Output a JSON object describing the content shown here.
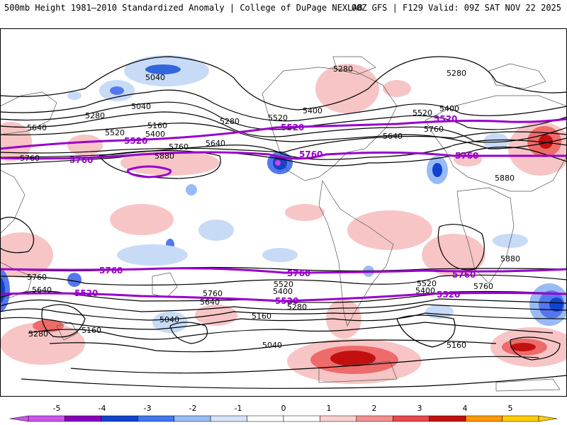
{
  "header": {
    "left_title": "500mb Height 1981–2010 Standardized Anomaly | College of DuPage NEXLAB",
    "right_title": "00Z GFS | F129 Valid: 09Z SAT NOV 22 2025"
  },
  "colors": {
    "contour": "#000000",
    "highlight_contour": "#9900cc",
    "ocean_background": "#ffffff"
  },
  "contour_labels": {
    "l5040a": "5040",
    "l5040b": "5040",
    "l5040c": "5040",
    "l5040d": "5040",
    "l5160a": "5160",
    "l5160b": "5160",
    "l5160c": "5160",
    "l5160d": "5160",
    "l5280a": "5280",
    "l5280b": "5280",
    "l5280c": "5280",
    "l5280d": "5280",
    "l5280e": "5280",
    "l5280f": "5280",
    "l5400a": "5400",
    "l5400b": "5400",
    "l5400c": "5400",
    "l5400d": "5400",
    "l5400e": "5400",
    "l5520a": "5520",
    "l5520b": "5520",
    "l5520c": "5520",
    "l5520d": "5520",
    "l5520e": "5520",
    "l5640a": "5640",
    "l5640b": "5640",
    "l5640c": "5640",
    "l5640d": "5640",
    "l5640e": "5640",
    "l5760a": "5760",
    "l5760b": "5760",
    "l5760c": "5760",
    "l5760d": "5760",
    "l5760e": "5760",
    "l5760f": "5760",
    "l5880a": "5880",
    "l5880b": "5880",
    "l5880c": "5880"
  },
  "highlight_labels": {
    "n5520a": "5520",
    "n5520b": "5520",
    "n5520c": "5520",
    "n5760a": "5760",
    "n5760b": "5760",
    "n5760c": "5760",
    "s5760a": "5760",
    "s5760b": "5760",
    "s5760c": "5760",
    "s5520a": "5520",
    "s5520b": "5520",
    "s5520c": "5520"
  },
  "colorbar": {
    "ticks": [
      "-5",
      "-4",
      "-3",
      "-2",
      "-1",
      "0",
      "1",
      "2",
      "3",
      "4",
      "5"
    ],
    "colors": [
      "#cc55ee",
      "#8800bb",
      "#1144cc",
      "#4477ee",
      "#99bbf5",
      "#d6e4fa",
      "#ffffff",
      "#ffffff",
      "#f9d0d0",
      "#f29090",
      "#e84848",
      "#c21010",
      "#ff9900",
      "#ffcc00"
    ]
  }
}
